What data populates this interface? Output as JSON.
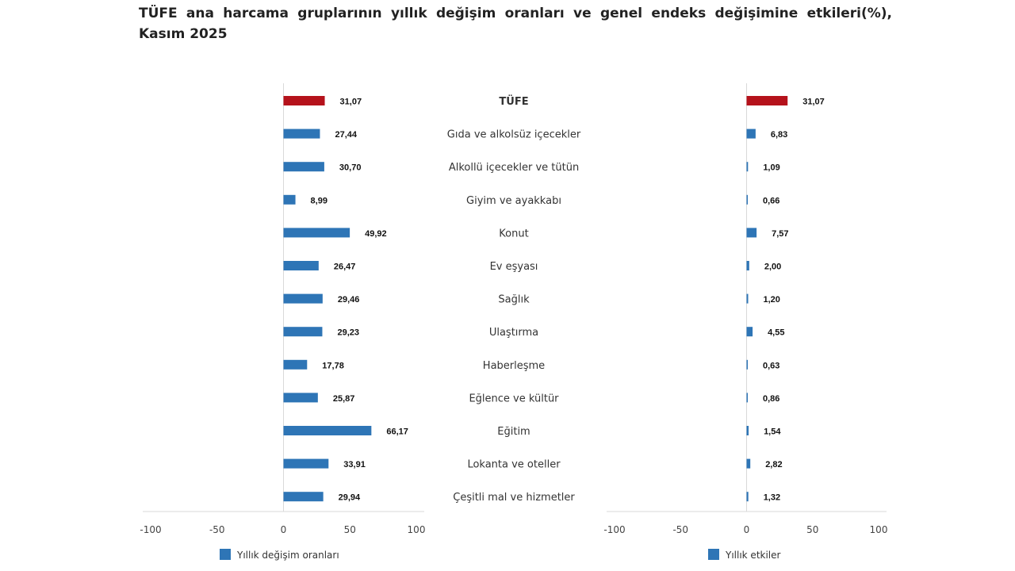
{
  "chart_data": [
    {
      "type": "bar",
      "orientation": "horizontal",
      "title": "TÜFE ana harcama gruplarının yıllık değişim oranları ve genel endeks değişimine etkileri(%), Kasım 2025",
      "categories": [
        "TÜFE",
        "Gıda ve alkolsüz içecekler",
        "Alkollü içecekler ve tütün",
        "Giyim ve ayakkabı",
        "Konut",
        "Ev eşyası",
        "Sağlık",
        "Ulaştırma",
        "Haberleşme",
        "Eğlence ve kültür",
        "Eğitim",
        "Lokanta ve oteller",
        "Çeşitli mal ve hizmetler"
      ],
      "series": [
        {
          "name": "Yıllık değişim oranları",
          "values": [
            31.07,
            27.44,
            30.7,
            8.99,
            49.92,
            26.47,
            29.46,
            29.23,
            17.78,
            25.87,
            66.17,
            33.91,
            29.94
          ]
        }
      ],
      "labels": [
        "31,07",
        "27,44",
        "30,70",
        "8,99",
        "49,92",
        "26,47",
        "29,46",
        "29,23",
        "17,78",
        "25,87",
        "66,17",
        "33,91",
        "29,94"
      ],
      "xlim": [
        -100,
        100
      ],
      "xticks": [
        "-100",
        "-50",
        "0",
        "50",
        "100"
      ],
      "legend": "bottom-left",
      "grid": false
    },
    {
      "type": "bar",
      "orientation": "horizontal",
      "series": [
        {
          "name": "Yıllık etkiler",
          "values": [
            31.07,
            6.83,
            1.09,
            0.66,
            7.57,
            2.0,
            1.2,
            4.55,
            0.63,
            0.86,
            1.54,
            2.82,
            1.32
          ]
        }
      ],
      "labels": [
        "31,07",
        "6,83",
        "1,09",
        "0,66",
        "7,57",
        "2,00",
        "1,20",
        "4,55",
        "0,63",
        "0,86",
        "1,54",
        "2,82",
        "1,32"
      ],
      "xlim": [
        -100,
        100
      ],
      "xticks": [
        "-100",
        "-50",
        "0",
        "50",
        "100"
      ],
      "legend": "bottom-center",
      "grid": false
    }
  ],
  "colors": {
    "total": "#b5121b",
    "groups": "#2e75b6",
    "axis": "#d9d9d9"
  }
}
